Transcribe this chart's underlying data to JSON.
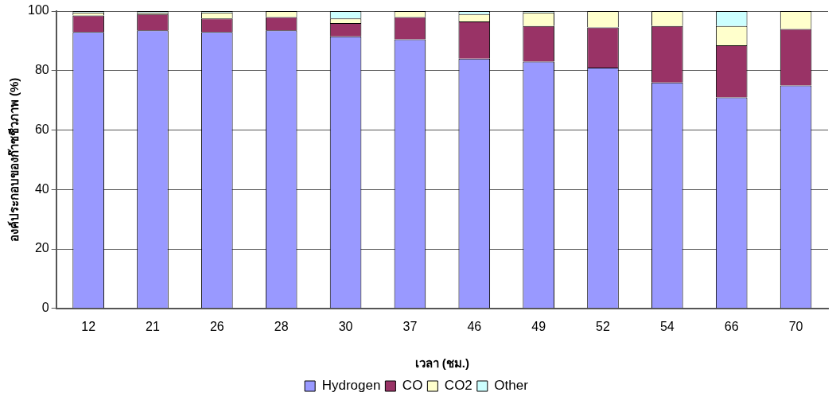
{
  "chart_data": {
    "type": "bar",
    "stacked": true,
    "xlabel": "เวลา (ชม.)",
    "ylabel": "องค์ประกอบของก๊าซชีวภาพ (%)",
    "categories": [
      "12",
      "21",
      "26",
      "28",
      "30",
      "37",
      "46",
      "49",
      "52",
      "54",
      "66",
      "70"
    ],
    "series": [
      {
        "name": "Hydrogen",
        "color": "#9999ff",
        "values": [
          93,
          93.5,
          93,
          93.5,
          91.5,
          90.5,
          84,
          83,
          81,
          76,
          71,
          75
        ]
      },
      {
        "name": "CO",
        "color": "#993366",
        "values": [
          5.5,
          5.5,
          4.5,
          4.5,
          4.5,
          7.5,
          12.5,
          12,
          13.5,
          19,
          17.5,
          19
        ]
      },
      {
        "name": "CO2",
        "color": "#ffffcc",
        "values": [
          1,
          0.5,
          2,
          2,
          1.5,
          2,
          2.5,
          4.5,
          5.5,
          5,
          6.5,
          6
        ]
      },
      {
        "name": "Other",
        "color": "#ccffff",
        "values": [
          0.5,
          0.5,
          0.5,
          0,
          2.5,
          0,
          1,
          0.5,
          0,
          0,
          5,
          0
        ]
      }
    ],
    "ylim": [
      0,
      100
    ],
    "yticks": [
      0,
      20,
      40,
      60,
      80,
      100
    ],
    "grid": "y",
    "legend": "bottom"
  }
}
